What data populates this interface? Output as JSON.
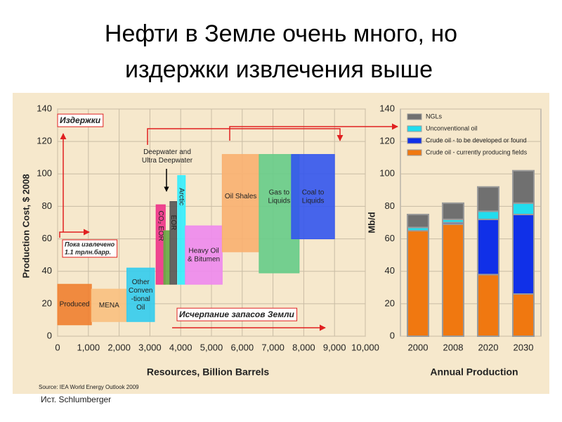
{
  "slide": {
    "title_lines": [
      "Нефти в Земле очень много, но",
      "издержки извлечения выше"
    ],
    "credit": "Ист. Schlumberger"
  },
  "chart_data": [
    {
      "type": "block",
      "x_label": "Resources, Billion Barrels",
      "y_label": "Production Cost, $ 2008",
      "xlim": [
        0,
        10000
      ],
      "ylim": [
        0,
        140
      ],
      "xticks": [
        0,
        {
          "value": 1000,
          "label": "1,000"
        },
        {
          "value": 2000,
          "label": "2,000"
        },
        {
          "value": 3000,
          "label": "3,000"
        },
        {
          "value": 4000,
          "label": "4,000"
        },
        {
          "value": 5000,
          "label": "5,000"
        },
        {
          "value": 6000,
          "label": "6,000"
        },
        {
          "value": 7000,
          "label": "7,000"
        },
        {
          "value": 8000,
          "label": "8,000"
        },
        {
          "value": 9000,
          "label": "9,000"
        },
        {
          "value": 10000,
          "label": "10,000"
        }
      ],
      "yticks": [
        0,
        20,
        40,
        60,
        80,
        100,
        120,
        140
      ],
      "grid": true,
      "blocks": [
        {
          "name": "Produced",
          "color": "#f08030",
          "x": [
            0,
            1100
          ],
          "y": [
            7,
            32
          ]
        },
        {
          "name": "MENA",
          "color": "#f9c080",
          "x": [
            1100,
            2250
          ],
          "y": [
            9,
            29
          ]
        },
        {
          "name": "Other\nConven\n-tional\nOil",
          "color": "#33ccee",
          "x": [
            2250,
            3150
          ],
          "y": [
            9,
            42
          ]
        },
        {
          "name": "CO₂ EOR",
          "color": "#ee3388",
          "x": [
            3200,
            3500
          ],
          "y": [
            32,
            81
          ]
        },
        {
          "name": null,
          "color": "#66aa44",
          "x": [
            3450,
            3650
          ],
          "y": [
            32,
            65
          ]
        },
        {
          "name": "EOR",
          "color": "#555555",
          "x": [
            3650,
            3870
          ],
          "y": [
            32,
            83
          ]
        },
        {
          "name": "Arctic",
          "color": "#33eeff",
          "x": [
            3900,
            4150
          ],
          "y": [
            32,
            99
          ]
        },
        {
          "name": "Heavy Oil\n& Bitumen",
          "color": "#ee88ee",
          "x": [
            4150,
            5350
          ],
          "y": [
            32,
            68
          ]
        },
        {
          "name": "Oil Shales",
          "color": "#f9b070",
          "x": [
            5350,
            6550
          ],
          "y": [
            52,
            112
          ]
        },
        {
          "name": "Gas to\nLiquids",
          "color": "#66cc88",
          "x": [
            6550,
            7850
          ],
          "y": [
            39,
            112
          ]
        },
        {
          "name": "Coal to\nLiquids",
          "color": "#3355ee",
          "x": [
            7600,
            9000
          ],
          "y": [
            60,
            112
          ]
        }
      ],
      "annotations": [
        "Издержки",
        "Пока извлечено\n1.1 трлн.барр.",
        "Исчерпание запасов Земли",
        "Deepwater and\nUltra Deepwater"
      ],
      "source": "Source: IEA World Energy Outlook 2009"
    },
    {
      "type": "stacked_bar",
      "x_label": "Annual Production",
      "y_label": "Mb/d",
      "categories": [
        "2000",
        "2008",
        "2020",
        "2030"
      ],
      "ylim": [
        0,
        140
      ],
      "yticks": [
        0,
        20,
        40,
        60,
        80,
        100,
        120,
        140
      ],
      "series": [
        {
          "name": "Crude oil - currently producing fields",
          "color": "#f07810",
          "values": [
            65,
            69,
            38,
            26
          ]
        },
        {
          "name": "Crude oil - to be developed or found",
          "color": "#1030e8",
          "values": [
            0,
            1,
            34,
            49
          ]
        },
        {
          "name": "Unconventional oil",
          "color": "#22ddee",
          "values": [
            2,
            2,
            5,
            7
          ]
        },
        {
          "name": "NGLs",
          "color": "#707070",
          "values": [
            8,
            10,
            15,
            20
          ]
        }
      ]
    }
  ]
}
